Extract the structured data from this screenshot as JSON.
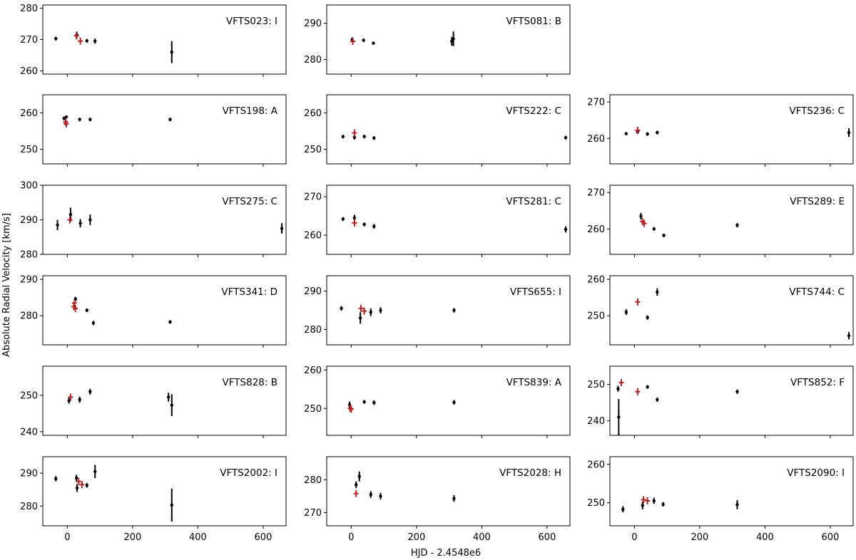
{
  "figure": {
    "ylabel": "Absolute Radial Velocity [km/s]",
    "xlabel": "HJD - 2.4548e6"
  },
  "colors": {
    "rv": "#000000",
    "highlight": "#b22222"
  },
  "chart_data": [
    {
      "type": "scatter",
      "label": "VFTS023: I",
      "xlim": [
        -75,
        670
      ],
      "ylim": [
        259,
        281
      ],
      "yticks": [
        260,
        270,
        280
      ],
      "xticks": [],
      "show_xticklabels": false,
      "points": [
        {
          "x": -35,
          "y": 270.3,
          "err": 0.6
        },
        {
          "x": 29,
          "y": 271.5,
          "err": 1.0
        },
        {
          "x": 60,
          "y": 269.6,
          "err": 0.6
        },
        {
          "x": 85,
          "y": 269.5,
          "err": 0.8
        },
        {
          "x": 320,
          "y": 266.0,
          "err": 3.5
        }
      ],
      "highlight": [
        {
          "x": 28,
          "y": 271.2
        },
        {
          "x": 40,
          "y": 269.5
        }
      ]
    },
    {
      "type": "scatter",
      "label": "VFTS081: B",
      "xlim": [
        -75,
        670
      ],
      "ylim": [
        276,
        295
      ],
      "yticks": [
        280,
        290
      ],
      "xticks": [],
      "show_xticklabels": false,
      "points": [
        {
          "x": 3,
          "y": 285.5,
          "err": 0.6
        },
        {
          "x": 38,
          "y": 285.3,
          "err": 0.5
        },
        {
          "x": 68,
          "y": 284.5,
          "err": 0.4
        },
        {
          "x": 308,
          "y": 285.0,
          "err": 1.2
        },
        {
          "x": 313,
          "y": 285.7,
          "err": 2.0
        }
      ],
      "highlight": [
        {
          "x": 5,
          "y": 285.0
        }
      ]
    },
    {
      "type": "scatter",
      "label": "VFTS198: A",
      "xlim": [
        -75,
        670
      ],
      "ylim": [
        246,
        265
      ],
      "yticks": [
        250,
        260
      ],
      "xticks": [],
      "show_xticklabels": false,
      "points": [
        {
          "x": -10,
          "y": 258.5,
          "err": 0.5
        },
        {
          "x": -3,
          "y": 258.9,
          "err": 0.4
        },
        {
          "x": 38,
          "y": 258.2,
          "err": 0.5
        },
        {
          "x": 70,
          "y": 258.2,
          "err": 0.5
        },
        {
          "x": 315,
          "y": 258.2,
          "err": 0.5
        }
      ],
      "highlight": [
        {
          "x": -5,
          "y": 257.5
        },
        {
          "x": -3,
          "y": 257.0
        }
      ]
    },
    {
      "type": "scatter",
      "label": "VFTS222: C",
      "xlim": [
        -75,
        670
      ],
      "ylim": [
        246,
        265
      ],
      "yticks": [
        250,
        260
      ],
      "xticks": [],
      "show_xticklabels": false,
      "points": [
        {
          "x": -25,
          "y": 253.5,
          "err": 0.5
        },
        {
          "x": 10,
          "y": 253.3,
          "err": 0.6
        },
        {
          "x": 40,
          "y": 253.5,
          "err": 0.5
        },
        {
          "x": 70,
          "y": 253.1,
          "err": 0.5
        },
        {
          "x": 657,
          "y": 253.2,
          "err": 0.5
        }
      ],
      "highlight": [
        {
          "x": 10,
          "y": 254.5
        }
      ]
    },
    {
      "type": "scatter",
      "label": "VFTS236: C",
      "xlim": [
        -75,
        670
      ],
      "ylim": [
        253,
        272
      ],
      "yticks": [
        260,
        270
      ],
      "xticks": [],
      "show_xticklabels": false,
      "points": [
        {
          "x": -25,
          "y": 261.3,
          "err": 0.4
        },
        {
          "x": 10,
          "y": 261.8,
          "err": 0.5
        },
        {
          "x": 40,
          "y": 261.2,
          "err": 0.5
        },
        {
          "x": 70,
          "y": 261.6,
          "err": 0.5
        },
        {
          "x": 657,
          "y": 261.6,
          "err": 1.2
        }
      ],
      "highlight": [
        {
          "x": 10,
          "y": 262.2
        }
      ]
    },
    {
      "type": "scatter",
      "label": "VFTS275: C",
      "xlim": [
        -75,
        670
      ],
      "ylim": [
        280,
        300
      ],
      "yticks": [
        280,
        290,
        300
      ],
      "xticks": [],
      "show_xticklabels": false,
      "points": [
        {
          "x": -30,
          "y": 288.5,
          "err": 1.5
        },
        {
          "x": 10,
          "y": 291.5,
          "err": 2.0
        },
        {
          "x": 40,
          "y": 289.0,
          "err": 1.2
        },
        {
          "x": 70,
          "y": 290.0,
          "err": 1.5
        },
        {
          "x": 657,
          "y": 287.5,
          "err": 1.5
        }
      ],
      "highlight": [
        {
          "x": 8,
          "y": 290.0
        }
      ]
    },
    {
      "type": "scatter",
      "label": "VFTS281: C",
      "xlim": [
        -75,
        670
      ],
      "ylim": [
        255,
        273
      ],
      "yticks": [
        260,
        270
      ],
      "xticks": [],
      "show_xticklabels": false,
      "points": [
        {
          "x": -25,
          "y": 264.2,
          "err": 0.5
        },
        {
          "x": 10,
          "y": 264.5,
          "err": 0.8
        },
        {
          "x": 40,
          "y": 262.8,
          "err": 0.5
        },
        {
          "x": 70,
          "y": 262.3,
          "err": 0.6
        },
        {
          "x": 657,
          "y": 261.5,
          "err": 0.8
        }
      ],
      "highlight": [
        {
          "x": 10,
          "y": 263.2
        }
      ]
    },
    {
      "type": "scatter",
      "label": "VFTS289: E",
      "xlim": [
        -75,
        670
      ],
      "ylim": [
        253,
        272
      ],
      "yticks": [
        260,
        270
      ],
      "xticks": [],
      "show_xticklabels": false,
      "points": [
        {
          "x": 20,
          "y": 263.5,
          "err": 0.9
        },
        {
          "x": 60,
          "y": 260.0,
          "err": 0.5
        },
        {
          "x": 90,
          "y": 258.2,
          "err": 0.5
        },
        {
          "x": 315,
          "y": 261.0,
          "err": 0.6
        }
      ],
      "highlight": [
        {
          "x": 25,
          "y": 262.0
        },
        {
          "x": 30,
          "y": 261.5
        }
      ]
    },
    {
      "type": "scatter",
      "label": "VFTS341: D",
      "xlim": [
        -75,
        670
      ],
      "ylim": [
        272,
        291
      ],
      "yticks": [
        280,
        290
      ],
      "xticks": [],
      "show_xticklabels": false,
      "points": [
        {
          "x": 25,
          "y": 284.6,
          "err": 0.6
        },
        {
          "x": 60,
          "y": 281.5,
          "err": 0.5
        },
        {
          "x": 80,
          "y": 278.0,
          "err": 0.6
        },
        {
          "x": 315,
          "y": 278.3,
          "err": 0.5
        }
      ],
      "highlight": [
        {
          "x": 20,
          "y": 282.5
        },
        {
          "x": 22,
          "y": 283.5
        },
        {
          "x": 25,
          "y": 282.0
        }
      ]
    },
    {
      "type": "scatter",
      "label": "VFTS655: I",
      "xlim": [
        -75,
        670
      ],
      "ylim": [
        276,
        294
      ],
      "yticks": [
        280,
        290
      ],
      "xticks": [],
      "show_xticklabels": false,
      "points": [
        {
          "x": -30,
          "y": 285.5,
          "err": 0.6
        },
        {
          "x": 28,
          "y": 283.0,
          "err": 1.5
        },
        {
          "x": 60,
          "y": 284.5,
          "err": 1.0
        },
        {
          "x": 90,
          "y": 285.0,
          "err": 0.8
        },
        {
          "x": 315,
          "y": 285.0,
          "err": 0.6
        }
      ],
      "highlight": [
        {
          "x": 30,
          "y": 285.5
        },
        {
          "x": 40,
          "y": 284.8
        }
      ]
    },
    {
      "type": "scatter",
      "label": "VFTS744: C",
      "xlim": [
        -75,
        670
      ],
      "ylim": [
        242,
        261
      ],
      "yticks": [
        250,
        260
      ],
      "xticks": [],
      "show_xticklabels": false,
      "points": [
        {
          "x": -25,
          "y": 251.0,
          "err": 0.8
        },
        {
          "x": 40,
          "y": 249.5,
          "err": 0.6
        },
        {
          "x": 70,
          "y": 256.5,
          "err": 1.0
        },
        {
          "x": 657,
          "y": 244.5,
          "err": 1.0
        }
      ],
      "highlight": [
        {
          "x": 10,
          "y": 253.8
        }
      ]
    },
    {
      "type": "scatter",
      "label": "VFTS828: B",
      "xlim": [
        -75,
        670
      ],
      "ylim": [
        239,
        258
      ],
      "yticks": [
        240,
        250
      ],
      "xticks": [],
      "show_xticklabels": false,
      "points": [
        {
          "x": 5,
          "y": 248.5,
          "err": 0.8
        },
        {
          "x": 38,
          "y": 248.8,
          "err": 0.8
        },
        {
          "x": 70,
          "y": 251.0,
          "err": 0.8
        },
        {
          "x": 310,
          "y": 249.5,
          "err": 1.2
        },
        {
          "x": 320,
          "y": 247.3,
          "err": 3.0
        }
      ],
      "highlight": [
        {
          "x": 10,
          "y": 249.5
        }
      ]
    },
    {
      "type": "scatter",
      "label": "VFTS839: A",
      "xlim": [
        -75,
        670
      ],
      "ylim": [
        243,
        261
      ],
      "yticks": [
        250,
        260
      ],
      "xticks": [],
      "show_xticklabels": false,
      "points": [
        {
          "x": -5,
          "y": 251.0,
          "err": 0.8
        },
        {
          "x": 40,
          "y": 251.7,
          "err": 0.5
        },
        {
          "x": 70,
          "y": 251.5,
          "err": 0.6
        },
        {
          "x": 315,
          "y": 251.6,
          "err": 0.6
        }
      ],
      "highlight": [
        {
          "x": -3,
          "y": 250.0
        },
        {
          "x": 0,
          "y": 249.8
        }
      ]
    },
    {
      "type": "scatter",
      "label": "VFTS852: F",
      "xlim": [
        -75,
        670
      ],
      "ylim": [
        236,
        255
      ],
      "yticks": [
        240,
        250
      ],
      "xticks": [],
      "show_xticklabels": false,
      "points": [
        {
          "x": -50,
          "y": 248.8,
          "err": 0.8
        },
        {
          "x": -48,
          "y": 241.0,
          "err": 5.0
        },
        {
          "x": 40,
          "y": 249.3,
          "err": 0.5
        },
        {
          "x": 70,
          "y": 245.8,
          "err": 0.6
        },
        {
          "x": 315,
          "y": 248.0,
          "err": 0.6
        }
      ],
      "highlight": [
        {
          "x": -40,
          "y": 250.5
        },
        {
          "x": 10,
          "y": 248.0
        }
      ]
    },
    {
      "type": "scatter",
      "label": "VFTS2002: I",
      "xlim": [
        -75,
        670
      ],
      "ylim": [
        274,
        295
      ],
      "yticks": [
        280,
        290
      ],
      "xticks": [
        0,
        200,
        400,
        600
      ],
      "show_xticklabels": true,
      "points": [
        {
          "x": -35,
          "y": 288.3,
          "err": 0.8
        },
        {
          "x": 28,
          "y": 288.5,
          "err": 1.0
        },
        {
          "x": 30,
          "y": 285.5,
          "err": 1.2
        },
        {
          "x": 60,
          "y": 286.3,
          "err": 0.7
        },
        {
          "x": 85,
          "y": 290.5,
          "err": 2.0
        },
        {
          "x": 320,
          "y": 280.3,
          "err": 5.0
        }
      ],
      "highlight": [
        {
          "x": 35,
          "y": 287.5
        },
        {
          "x": 45,
          "y": 286.5
        }
      ]
    },
    {
      "type": "scatter",
      "label": "VFTS2028: H",
      "xlim": [
        -75,
        670
      ],
      "ylim": [
        266,
        287
      ],
      "yticks": [
        270,
        280
      ],
      "xticks": [
        0,
        200,
        400,
        600
      ],
      "show_xticklabels": true,
      "points": [
        {
          "x": 15,
          "y": 278.5,
          "err": 1.0
        },
        {
          "x": 25,
          "y": 281.0,
          "err": 1.5
        },
        {
          "x": 60,
          "y": 275.5,
          "err": 1.0
        },
        {
          "x": 90,
          "y": 275.0,
          "err": 1.0
        },
        {
          "x": 315,
          "y": 274.3,
          "err": 1.0
        }
      ],
      "highlight": [
        {
          "x": 15,
          "y": 275.8
        }
      ]
    },
    {
      "type": "scatter",
      "label": "VFTS2090: I",
      "xlim": [
        -75,
        670
      ],
      "ylim": [
        244,
        262
      ],
      "yticks": [
        250,
        260
      ],
      "xticks": [
        0,
        200,
        400,
        600
      ],
      "show_xticklabels": true,
      "points": [
        {
          "x": -35,
          "y": 248.3,
          "err": 0.8
        },
        {
          "x": 25,
          "y": 249.3,
          "err": 1.0
        },
        {
          "x": 60,
          "y": 250.5,
          "err": 0.8
        },
        {
          "x": 88,
          "y": 249.6,
          "err": 0.6
        },
        {
          "x": 315,
          "y": 249.5,
          "err": 1.2
        }
      ],
      "highlight": [
        {
          "x": 28,
          "y": 250.8
        },
        {
          "x": 40,
          "y": 250.5
        }
      ]
    }
  ]
}
